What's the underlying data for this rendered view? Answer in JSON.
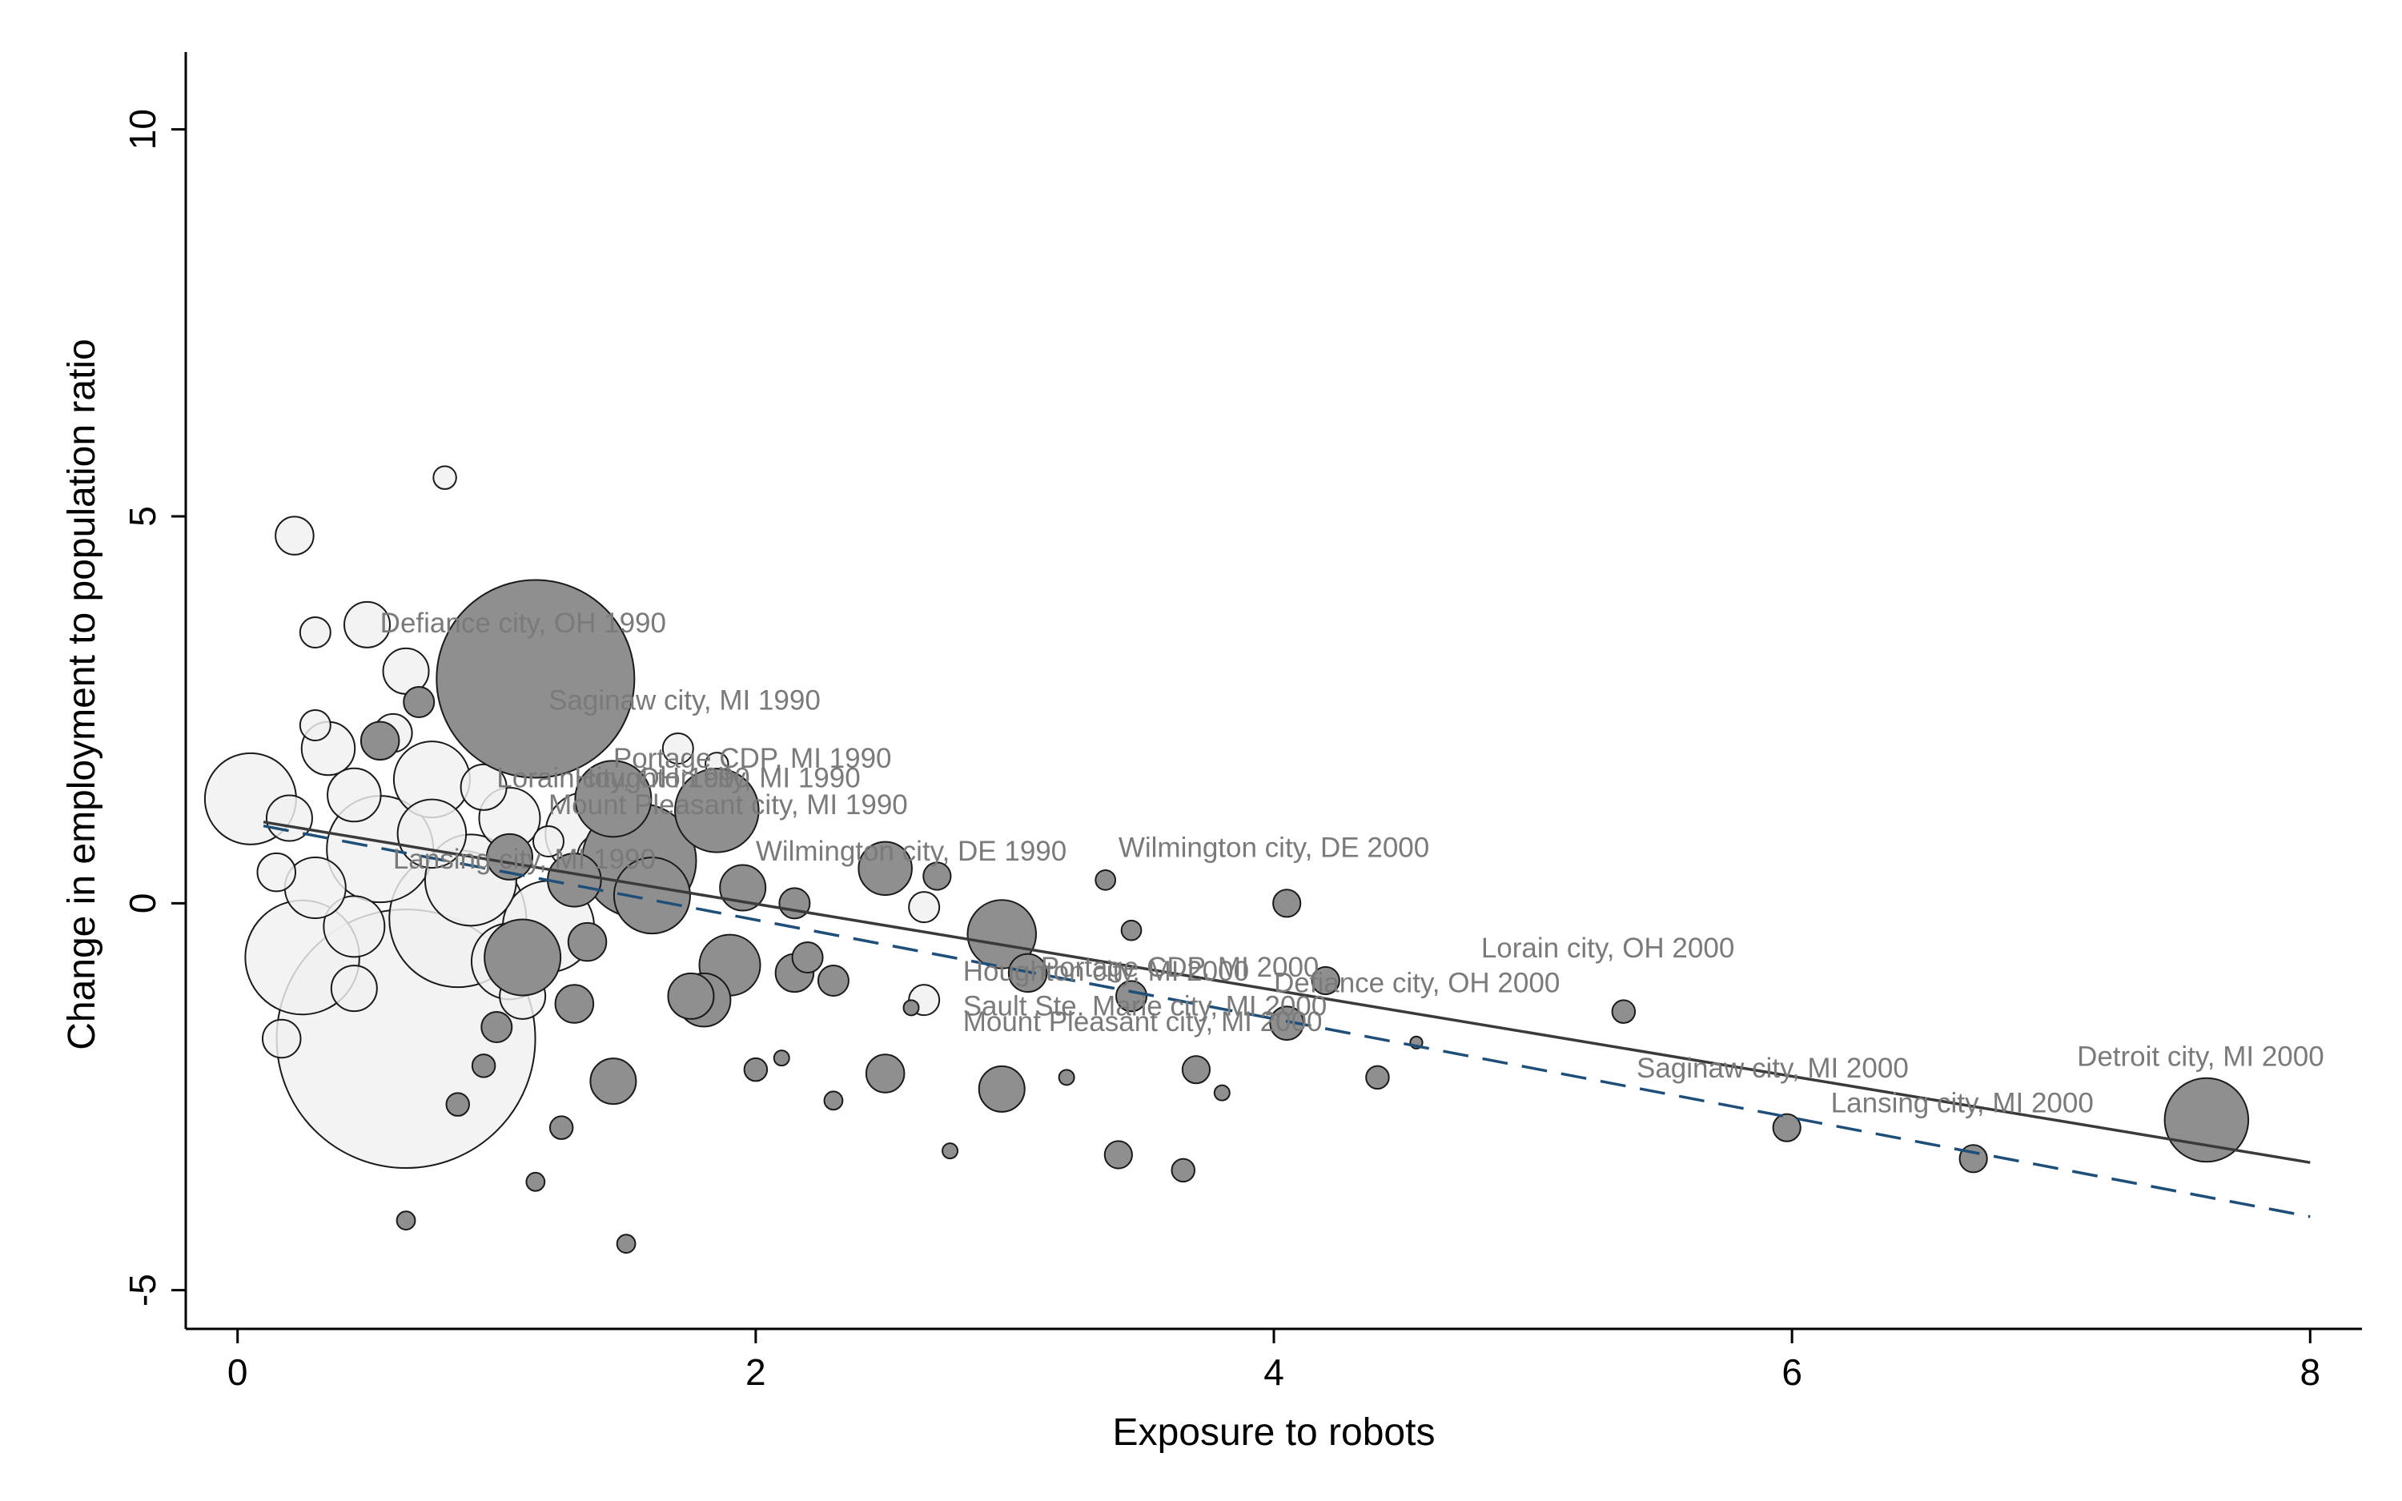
{
  "chart_data": {
    "type": "scatter",
    "title": "",
    "xlabel": "Exposure to robots",
    "ylabel": "Change in employment to population ratio",
    "xlim": [
      -0.2,
      8.2
    ],
    "ylim": [
      -5.5,
      11.0
    ],
    "x_ticks": [
      0,
      2,
      4,
      6,
      8
    ],
    "y_ticks": [
      -5,
      0,
      5,
      10
    ],
    "grid": false,
    "legend": "none",
    "colors": {
      "series_1990_fill": "#f0f0f0",
      "series_2000_fill": "#8f8f8f",
      "marker_edge": "#1a1a1a",
      "solid_fit": "#3a3a3a",
      "dashed_fit": "#1f4e79",
      "label_text": "#7a7a7a"
    },
    "series": [
      {
        "marker": "hollow-light",
        "points": [
          {
            "x": 0.05,
            "y": 1.35,
            "size": 6.0
          },
          {
            "x": 0.22,
            "y": 4.75,
            "size": 2.5
          },
          {
            "x": 0.5,
            "y": 3.6,
            "size": 3.0
          },
          {
            "x": 0.35,
            "y": 2.0,
            "size": 3.5
          },
          {
            "x": 0.75,
            "y": 1.6,
            "size": 5.0
          },
          {
            "x": 0.95,
            "y": 2.4,
            "size": 2.5
          },
          {
            "x": 0.65,
            "y": 3.0,
            "size": 3.0
          },
          {
            "x": 0.55,
            "y": 0.7,
            "size": 7.0
          },
          {
            "x": 0.25,
            "y": -0.7,
            "size": 7.5
          },
          {
            "x": 0.65,
            "y": -1.75,
            "size": 17.0
          },
          {
            "x": 1.05,
            "y": -0.75,
            "size": 5.0
          },
          {
            "x": 1.2,
            "y": -0.3,
            "size": 6.0
          },
          {
            "x": 0.9,
            "y": 0.3,
            "size": 6.0
          },
          {
            "x": 1.05,
            "y": 1.1,
            "size": 4.0
          },
          {
            "x": 0.2,
            "y": 1.1,
            "size": 3.0
          },
          {
            "x": 0.45,
            "y": 1.4,
            "size": 3.5
          },
          {
            "x": 1.35,
            "y": 0.9,
            "size": 5.5
          },
          {
            "x": 1.4,
            "y": 0.6,
            "size": 3.0
          },
          {
            "x": 1.2,
            "y": 0.8,
            "size": 2.0
          },
          {
            "x": 1.85,
            "y": 1.8,
            "size": 1.5
          },
          {
            "x": 1.7,
            "y": 2.0,
            "size": 2.0
          },
          {
            "x": 2.65,
            "y": -0.05,
            "size": 2.0
          },
          {
            "x": 2.65,
            "y": -1.25,
            "size": 2.0
          },
          {
            "x": 0.8,
            "y": 5.5,
            "size": 1.5
          },
          {
            "x": 0.17,
            "y": -1.75,
            "size": 2.5
          },
          {
            "x": 0.3,
            "y": 2.3,
            "size": 2.0
          },
          {
            "x": 0.85,
            "y": -0.2,
            "size": 9.0
          },
          {
            "x": 0.45,
            "y": -0.3,
            "size": 4.0
          },
          {
            "x": 0.3,
            "y": 0.2,
            "size": 4.0
          },
          {
            "x": 0.75,
            "y": 0.9,
            "size": 4.5
          },
          {
            "x": 0.95,
            "y": 1.5,
            "size": 3.0
          },
          {
            "x": 0.15,
            "y": 0.4,
            "size": 2.5
          },
          {
            "x": 0.3,
            "y": 3.5,
            "size": 2.0
          },
          {
            "x": 0.6,
            "y": 2.2,
            "size": 2.5
          },
          {
            "x": 1.1,
            "y": -1.2,
            "size": 3.0
          },
          {
            "x": 0.45,
            "y": -1.1,
            "size": 3.0
          }
        ]
      },
      {
        "marker": "filled-dark",
        "points": [
          {
            "x": 1.15,
            "y": 2.9,
            "size": 13.0
          },
          {
            "x": 1.45,
            "y": 1.35,
            "size": 5.0
          },
          {
            "x": 1.85,
            "y": 1.2,
            "size": 5.5
          },
          {
            "x": 1.55,
            "y": 0.55,
            "size": 7.5
          },
          {
            "x": 1.3,
            "y": 0.3,
            "size": 3.5
          },
          {
            "x": 1.6,
            "y": 0.1,
            "size": 5.0
          },
          {
            "x": 1.1,
            "y": -0.7,
            "size": 5.0
          },
          {
            "x": 1.3,
            "y": -1.3,
            "size": 2.5
          },
          {
            "x": 1.75,
            "y": -1.2,
            "size": 3.0
          },
          {
            "x": 1.9,
            "y": -0.8,
            "size": 4.0
          },
          {
            "x": 1.95,
            "y": 0.2,
            "size": 3.0
          },
          {
            "x": 2.15,
            "y": 0.0,
            "size": 2.0
          },
          {
            "x": 2.2,
            "y": -0.7,
            "size": 2.0
          },
          {
            "x": 2.15,
            "y": -0.9,
            "size": 2.5
          },
          {
            "x": 2.3,
            "y": -1.0,
            "size": 2.0
          },
          {
            "x": 2.5,
            "y": 0.45,
            "size": 3.5
          },
          {
            "x": 2.7,
            "y": 0.35,
            "size": 1.8
          },
          {
            "x": 2.95,
            "y": -0.4,
            "size": 4.5
          },
          {
            "x": 3.05,
            "y": -0.9,
            "size": 2.5
          },
          {
            "x": 2.5,
            "y": -2.2,
            "size": 2.5
          },
          {
            "x": 2.95,
            "y": -2.4,
            "size": 3.0
          },
          {
            "x": 3.45,
            "y": -1.2,
            "size": 2.0
          },
          {
            "x": 3.45,
            "y": -0.35,
            "size": 1.3
          },
          {
            "x": 3.35,
            "y": 0.3,
            "size": 1.3
          },
          {
            "x": 3.4,
            "y": -3.25,
            "size": 1.8
          },
          {
            "x": 3.65,
            "y": -3.45,
            "size": 1.5
          },
          {
            "x": 3.7,
            "y": -2.15,
            "size": 1.8
          },
          {
            "x": 4.05,
            "y": 0.0,
            "size": 1.8
          },
          {
            "x": 4.05,
            "y": -1.55,
            "size": 2.2
          },
          {
            "x": 4.2,
            "y": -1.0,
            "size": 1.8
          },
          {
            "x": 4.4,
            "y": -2.25,
            "size": 1.5
          },
          {
            "x": 5.35,
            "y": -1.4,
            "size": 1.5
          },
          {
            "x": 5.98,
            "y": -2.9,
            "size": 1.8
          },
          {
            "x": 6.7,
            "y": -3.3,
            "size": 1.8
          },
          {
            "x": 7.6,
            "y": -2.8,
            "size": 5.5
          },
          {
            "x": 1.5,
            "y": -4.4,
            "size": 1.2
          },
          {
            "x": 1.15,
            "y": -3.6,
            "size": 1.2
          },
          {
            "x": 0.65,
            "y": -4.1,
            "size": 1.2
          },
          {
            "x": 1.45,
            "y": -2.3,
            "size": 3.0
          },
          {
            "x": 1.8,
            "y": -1.25,
            "size": 3.5
          },
          {
            "x": 1.0,
            "y": -1.6,
            "size": 2.0
          },
          {
            "x": 0.85,
            "y": -2.6,
            "size": 1.5
          },
          {
            "x": 2.0,
            "y": -2.15,
            "size": 1.5
          },
          {
            "x": 2.6,
            "y": -1.35,
            "size": 1.0
          },
          {
            "x": 3.2,
            "y": -2.25,
            "size": 1.0
          },
          {
            "x": 3.8,
            "y": -2.45,
            "size": 1.0
          },
          {
            "x": 2.75,
            "y": -3.2,
            "size": 1.0
          },
          {
            "x": 0.95,
            "y": -2.1,
            "size": 1.5
          },
          {
            "x": 1.25,
            "y": -2.9,
            "size": 1.5
          },
          {
            "x": 1.05,
            "y": 0.6,
            "size": 3.0
          },
          {
            "x": 0.7,
            "y": 2.6,
            "size": 2.0
          },
          {
            "x": 0.55,
            "y": 2.1,
            "size": 2.5
          },
          {
            "x": 1.35,
            "y": -0.5,
            "size": 2.5
          },
          {
            "x": 2.1,
            "y": -2.0,
            "size": 1.0
          },
          {
            "x": 2.3,
            "y": -2.55,
            "size": 1.2
          },
          {
            "x": 4.55,
            "y": -1.8,
            "size": 0.8
          }
        ]
      }
    ],
    "fit_lines": [
      {
        "style": "solid",
        "x": [
          0.1,
          8.0
        ],
        "y": [
          1.05,
          -3.35
        ]
      },
      {
        "style": "dashed",
        "x": [
          0.1,
          8.0
        ],
        "y": [
          1.0,
          -4.05
        ]
      }
    ],
    "annotations": [
      {
        "text": "Defiance city, OH 1990",
        "x": 0.55,
        "y": 3.5
      },
      {
        "text": "Saginaw city, MI 1990",
        "x": 1.2,
        "y": 2.5
      },
      {
        "text": "Portage CDP, MI 1990",
        "x": 1.45,
        "y": 1.75
      },
      {
        "text": "Lorain city, OH 1990",
        "x": 1.0,
        "y": 1.5
      },
      {
        "text": "Houghton city, MI 1990",
        "x": 1.3,
        "y": 1.5
      },
      {
        "text": "Mount Pleasant city, MI 1990",
        "x": 1.2,
        "y": 1.15
      },
      {
        "text": "Wilmington city, DE 1990",
        "x": 2.0,
        "y": 0.55
      },
      {
        "text": "Lansing city, MI 1990",
        "x": 0.6,
        "y": 0.45
      },
      {
        "text": "Wilmington city, DE 2000",
        "x": 3.4,
        "y": 0.6
      },
      {
        "text": "Lorain city, OH 2000",
        "x": 4.8,
        "y": -0.7
      },
      {
        "text": "Houghton city, MI 2000",
        "x": 2.8,
        "y": -1.0
      },
      {
        "text": "Portage CDP, MI 2000",
        "x": 3.1,
        "y": -0.95
      },
      {
        "text": "Defiance city, OH 2000",
        "x": 4.0,
        "y": -1.15
      },
      {
        "text": "Sault Ste. Marie city, MI 2000",
        "x": 2.8,
        "y": -1.45
      },
      {
        "text": "Mount Pleasant city, MI 2000",
        "x": 2.8,
        "y": -1.65
      },
      {
        "text": "Saginaw city, MI 2000",
        "x": 5.4,
        "y": -2.25
      },
      {
        "text": "Lansing city, MI 2000",
        "x": 6.15,
        "y": -2.7
      },
      {
        "text": "Detroit city, MI 2000",
        "x": 7.1,
        "y": -2.1
      }
    ]
  }
}
